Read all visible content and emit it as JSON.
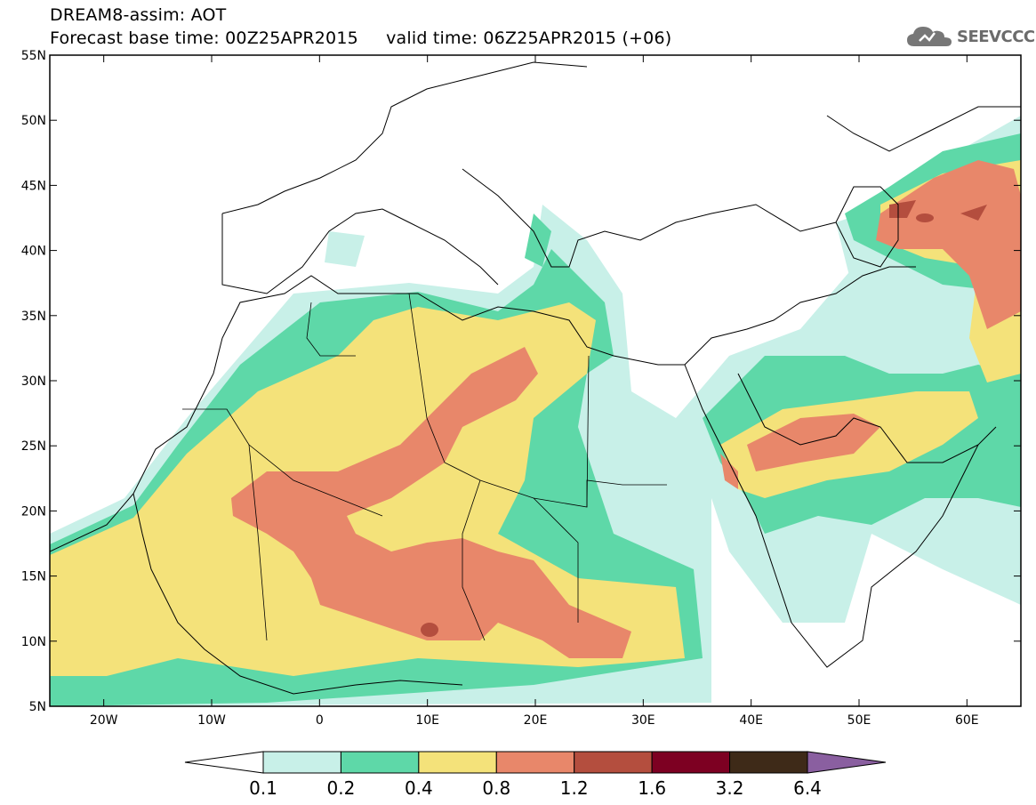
{
  "header": {
    "title_line1": "DREAM8-assim: AOT",
    "title_line2": "Forecast base time: 00Z25APR2015     valid time: 06Z25APR2015 (+06)"
  },
  "logo": {
    "text": "SEEVCCC",
    "icon": "cloud-icon"
  },
  "map": {
    "lat_labels": [
      "55N",
      "50N",
      "45N",
      "40N",
      "35N",
      "30N",
      "25N",
      "20N",
      "15N",
      "10N",
      "5N"
    ],
    "lon_labels": [
      "20W",
      "10W",
      "0",
      "10E",
      "20E",
      "30E",
      "40E",
      "50E",
      "60E"
    ],
    "lon_range": [
      -25,
      65
    ],
    "lat_range": [
      5,
      55
    ],
    "lat_values": [
      55,
      50,
      45,
      40,
      35,
      30,
      25,
      20,
      15,
      10,
      5
    ],
    "lon_values": [
      -20,
      -10,
      0,
      10,
      20,
      30,
      40,
      50,
      60
    ]
  },
  "legend": {
    "labels": [
      "0.1",
      "0.2",
      "0.4",
      "0.8",
      "1.2",
      "1.6",
      "3.2",
      "6.4"
    ],
    "colors": [
      "#ffffff",
      "#c8f0e8",
      "#5ed8a8",
      "#f4e27a",
      "#e8876a",
      "#b44e3e",
      "#7d0022",
      "#3e2a18",
      "#8a5fa0"
    ]
  }
}
